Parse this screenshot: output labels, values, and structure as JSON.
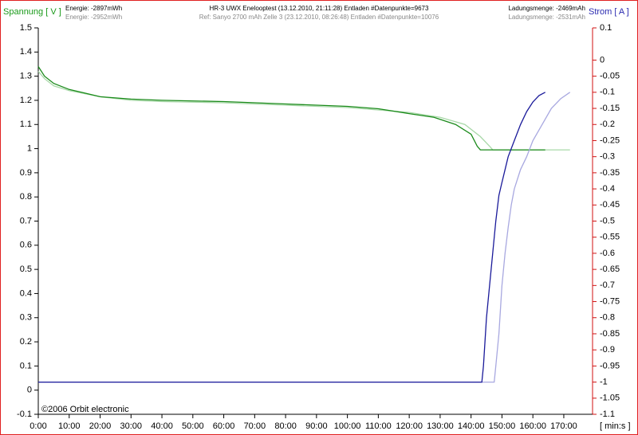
{
  "chart_data": {
    "type": "line",
    "ylabel": "Spannung [ V ]",
    "y2label": "Strom [ A ]",
    "xlabel": "[ min:s ]",
    "energy": "Energie: -2897mWh",
    "energy_ref": "Energie: -2952mWh",
    "test": "HR-3 UWX Enelooptest (13.12.2010, 21:11:28)   Entladen  #Datenpunkte=9673",
    "reference": "Ref: Sanyo 2700 mAh Zelle 3 (23.12.2010, 08:26:48)   Entladen  #Datenpunkte=10076",
    "charge": "Ladungsmenge: -2469mAh",
    "charge_ref": "Ladungsmenge: -2531mAh",
    "copyright": "©2006 Orbit electronic",
    "xlim": [
      0,
      179.3
    ],
    "ylim": [
      -0.1,
      1.5
    ],
    "y2lim": [
      -1.1,
      0.1
    ],
    "xticks": [
      {
        "value": 0,
        "label": "0:00"
      },
      {
        "value": 10,
        "label": "10:00"
      },
      {
        "value": 20,
        "label": "20:00"
      },
      {
        "value": 30,
        "label": "30:00"
      },
      {
        "value": 40,
        "label": "40:00"
      },
      {
        "value": 50,
        "label": "50:00"
      },
      {
        "value": 60,
        "label": "60:00"
      },
      {
        "value": 70,
        "label": "70:00"
      },
      {
        "value": 80,
        "label": "80:00"
      },
      {
        "value": 90,
        "label": "90:00"
      },
      {
        "value": 100,
        "label": "100:00"
      },
      {
        "value": 110,
        "label": "110:00"
      },
      {
        "value": 120,
        "label": "120:00"
      },
      {
        "value": 130,
        "label": "130:00"
      },
      {
        "value": 140,
        "label": "140:00"
      },
      {
        "value": 150,
        "label": "150:00"
      },
      {
        "value": 160,
        "label": "160:00"
      },
      {
        "value": 170,
        "label": "170:00"
      }
    ],
    "yticks": [
      1.5,
      1.4,
      1.3,
      1.2,
      1.1,
      1,
      0.9,
      0.8,
      0.7,
      0.6,
      0.5,
      0.4,
      0.3,
      0.2,
      0.1,
      0,
      -0.1
    ],
    "y2ticks": [
      0.1,
      0,
      -0.05,
      -0.1,
      -0.15,
      -0.2,
      -0.25,
      -0.3,
      -0.35,
      -0.4,
      -0.45,
      -0.5,
      -0.55,
      -0.6,
      -0.65,
      -0.7,
      -0.75,
      -0.8,
      -0.85,
      -0.9,
      -0.95,
      -1,
      -1.05,
      -1.1
    ],
    "ylabel_color": "#1a9a1a",
    "y2label_color": "#2a2ab0",
    "y2tick_color": "#d01010",
    "series": [
      {
        "color": "#a8d8a8",
        "axis": "y",
        "x": [
          0,
          2,
          5,
          10,
          20,
          30,
          40,
          60,
          80,
          100,
          120,
          130,
          138,
          143,
          146,
          147,
          160,
          172
        ],
        "values": [
          1.32,
          1.29,
          1.26,
          1.24,
          1.215,
          1.2,
          1.195,
          1.19,
          1.18,
          1.17,
          1.15,
          1.13,
          1.1,
          1.05,
          1.01,
          0.995,
          0.995,
          0.995
        ]
      },
      {
        "color": "#1a8a1a",
        "axis": "y",
        "x": [
          0,
          2,
          5,
          10,
          15,
          20,
          30,
          40,
          60,
          80,
          100,
          110,
          120,
          128,
          135,
          140,
          142,
          143,
          150,
          164
        ],
        "values": [
          1.34,
          1.3,
          1.27,
          1.245,
          1.23,
          1.215,
          1.205,
          1.2,
          1.195,
          1.185,
          1.175,
          1.165,
          1.145,
          1.13,
          1.1,
          1.06,
          1.01,
          0.995,
          0.995,
          0.995
        ]
      },
      {
        "color": "#a8a8e0",
        "axis": "y2",
        "x": [
          0,
          147.5,
          148,
          149,
          150,
          151,
          152,
          153,
          154,
          156,
          158,
          160,
          163,
          166,
          169,
          172
        ],
        "values": [
          -1,
          -1,
          -0.95,
          -0.85,
          -0.7,
          -0.6,
          -0.52,
          -0.45,
          -0.4,
          -0.34,
          -0.3,
          -0.25,
          -0.2,
          -0.15,
          -0.12,
          -0.1
        ]
      },
      {
        "color": "#1a1a9a",
        "axis": "y2",
        "x": [
          0,
          143.5,
          144,
          145,
          146,
          147,
          148,
          149,
          150,
          152,
          154,
          156,
          158,
          160,
          162,
          164
        ],
        "values": [
          -1,
          -1,
          -0.95,
          -0.8,
          -0.7,
          -0.6,
          -0.5,
          -0.42,
          -0.38,
          -0.3,
          -0.25,
          -0.2,
          -0.16,
          -0.13,
          -0.11,
          -0.1
        ]
      }
    ]
  }
}
